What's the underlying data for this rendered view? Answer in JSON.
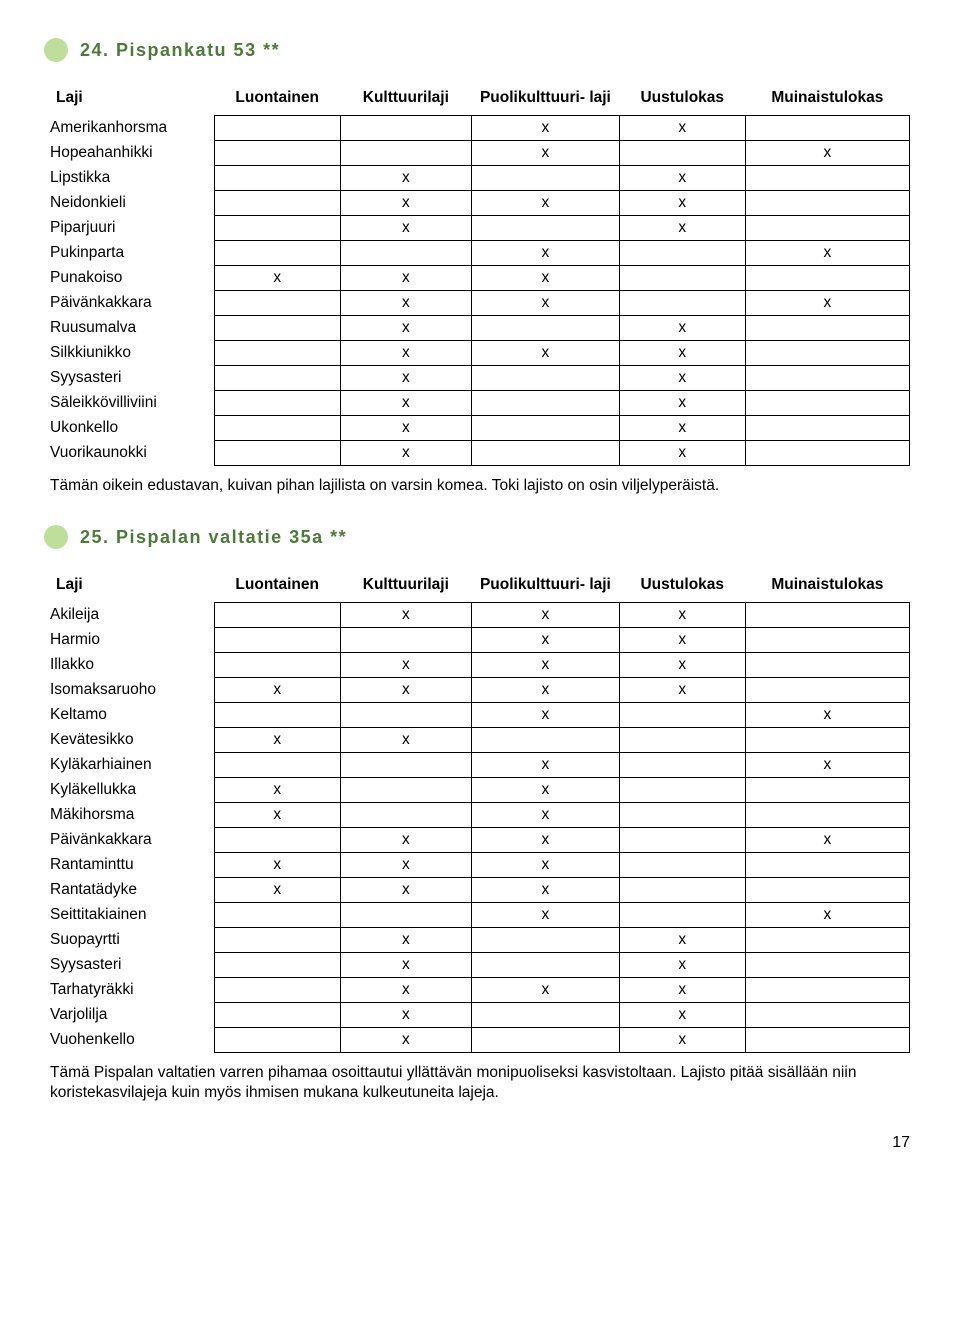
{
  "page_number": "17",
  "section1": {
    "heading": "24. Pispankatu 53 **",
    "headers": [
      "Laji",
      "Luontainen",
      "Kulttuurilaji",
      "Puolikulttuuri-\nlaji",
      "Uustulokas",
      "Muinaistulokas"
    ],
    "rows": [
      {
        "label": "Amerikanhorsma",
        "cells": [
          "",
          "",
          "x",
          "x",
          ""
        ]
      },
      {
        "label": "Hopeahanhikki",
        "cells": [
          "",
          "",
          "x",
          "",
          "x"
        ]
      },
      {
        "label": "Lipstikka",
        "cells": [
          "",
          "x",
          "",
          "x",
          ""
        ]
      },
      {
        "label": "Neidonkieli",
        "cells": [
          "",
          "x",
          "x",
          "x",
          ""
        ]
      },
      {
        "label": "Piparjuuri",
        "cells": [
          "",
          "x",
          "",
          "x",
          ""
        ]
      },
      {
        "label": "Pukinparta",
        "cells": [
          "",
          "",
          "x",
          "",
          "x"
        ]
      },
      {
        "label": "Punakoiso",
        "cells": [
          "x",
          "x",
          "x",
          "",
          ""
        ]
      },
      {
        "label": "Päivänkakkara",
        "cells": [
          "",
          "x",
          "x",
          "",
          "x"
        ]
      },
      {
        "label": "Ruusumalva",
        "cells": [
          "",
          "x",
          "",
          "x",
          ""
        ]
      },
      {
        "label": "Silkkiunikko",
        "cells": [
          "",
          "x",
          "x",
          "x",
          ""
        ]
      },
      {
        "label": "Syysasteri",
        "cells": [
          "",
          "x",
          "",
          "x",
          ""
        ]
      },
      {
        "label": "Säleikkövilliviini",
        "cells": [
          "",
          "x",
          "",
          "x",
          ""
        ]
      },
      {
        "label": "Ukonkello",
        "cells": [
          "",
          "x",
          "",
          "x",
          ""
        ]
      },
      {
        "label": "Vuorikaunokki",
        "cells": [
          "",
          "x",
          "",
          "x",
          ""
        ]
      }
    ],
    "note": "Tämän oikein edustavan, kuivan pihan lajilista on varsin komea. Toki lajisto on osin viljelyperäistä."
  },
  "section2": {
    "heading": "25. Pispalan valtatie 35a **",
    "headers": [
      "Laji",
      "Luontainen",
      "Kulttuurilaji",
      "Puolikulttuuri-\nlaji",
      "Uustulokas",
      "Muinaistulokas"
    ],
    "rows": [
      {
        "label": "Akileija",
        "cells": [
          "",
          "x",
          "x",
          "x",
          ""
        ]
      },
      {
        "label": "Harmio",
        "cells": [
          "",
          "",
          "x",
          "x",
          ""
        ]
      },
      {
        "label": "Illakko",
        "cells": [
          "",
          "x",
          "x",
          "x",
          ""
        ]
      },
      {
        "label": "Isomaksaruoho",
        "cells": [
          "x",
          "x",
          "x",
          "x",
          ""
        ]
      },
      {
        "label": "Keltamo",
        "cells": [
          "",
          "",
          "x",
          "",
          "x"
        ]
      },
      {
        "label": "Kevätesikko",
        "cells": [
          "x",
          "x",
          "",
          "",
          ""
        ]
      },
      {
        "label": "Kyläkarhiainen",
        "cells": [
          "",
          "",
          "x",
          "",
          "x"
        ]
      },
      {
        "label": "Kyläkellukka",
        "cells": [
          "x",
          "",
          "x",
          "",
          ""
        ]
      },
      {
        "label": "Mäkihorsma",
        "cells": [
          "x",
          "",
          "x",
          "",
          ""
        ]
      },
      {
        "label": "Päivänkakkara",
        "cells": [
          "",
          "x",
          "x",
          "",
          "x"
        ]
      },
      {
        "label": "Rantaminttu",
        "cells": [
          "x",
          "x",
          "x",
          "",
          ""
        ]
      },
      {
        "label": "Rantatädyke",
        "cells": [
          "x",
          "x",
          "x",
          "",
          ""
        ]
      },
      {
        "label": "Seittitakiainen",
        "cells": [
          "",
          "",
          "x",
          "",
          "x"
        ]
      },
      {
        "label": "Suopayrtti",
        "cells": [
          "",
          "x",
          "",
          "x",
          ""
        ]
      },
      {
        "label": "Syysasteri",
        "cells": [
          "",
          "x",
          "",
          "x",
          ""
        ]
      },
      {
        "label": "Tarhatyräkki",
        "cells": [
          "",
          "x",
          "x",
          "x",
          ""
        ]
      },
      {
        "label": "Varjolilja",
        "cells": [
          "",
          "x",
          "",
          "x",
          ""
        ]
      },
      {
        "label": "Vuohenkello",
        "cells": [
          "",
          "x",
          "",
          "x",
          ""
        ]
      }
    ],
    "note": "Tämä Pispalan valtatien varren pihamaa osoittautui yllättävän monipuoliseksi kasvistoltaan. Lajisto pitää sisällään niin koristekasvilajeja kuin myös ihmisen mukana kulkeutuneita lajeja."
  },
  "colors": {
    "heading_color": "#4d7a3a",
    "marker_color": "#8bc34a",
    "text_color": "#000000",
    "border_color": "#000000",
    "background": "#ffffff"
  },
  "fonts": {
    "body_size_pt": 12,
    "heading_size_pt": 14,
    "family": "Arial"
  }
}
